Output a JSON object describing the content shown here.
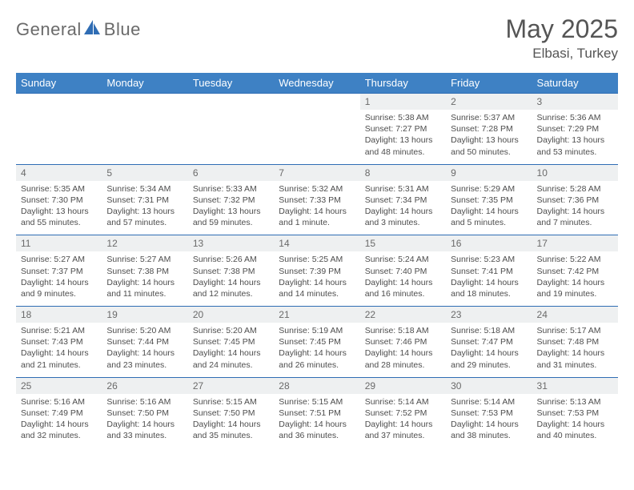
{
  "brand": {
    "part1": "General",
    "part2": "Blue"
  },
  "title": "May 2025",
  "location": "Elbasi, Turkey",
  "colors": {
    "header_bg": "#3e81c4",
    "header_text": "#ffffff",
    "daynum_bg": "#eef0f1",
    "daynum_text": "#6a6a6a",
    "row_divider": "#2f6db4",
    "body_text": "#4d4d4d",
    "title_text": "#555555",
    "logo_gray": "#6a6a6a",
    "logo_blue": "#2f6db4"
  },
  "typography": {
    "title_fontsize": 32,
    "location_fontsize": 17,
    "dayhead_fontsize": 13,
    "daynum_fontsize": 12,
    "cell_fontsize": 10.5
  },
  "day_names": [
    "Sunday",
    "Monday",
    "Tuesday",
    "Wednesday",
    "Thursday",
    "Friday",
    "Saturday"
  ],
  "weeks": [
    {
      "numbers": [
        "",
        "",
        "",
        "",
        "1",
        "2",
        "3"
      ],
      "cells": [
        null,
        null,
        null,
        null,
        {
          "sunrise": "Sunrise: 5:38 AM",
          "sunset": "Sunset: 7:27 PM",
          "d1": "Daylight: 13 hours",
          "d2": "and 48 minutes."
        },
        {
          "sunrise": "Sunrise: 5:37 AM",
          "sunset": "Sunset: 7:28 PM",
          "d1": "Daylight: 13 hours",
          "d2": "and 50 minutes."
        },
        {
          "sunrise": "Sunrise: 5:36 AM",
          "sunset": "Sunset: 7:29 PM",
          "d1": "Daylight: 13 hours",
          "d2": "and 53 minutes."
        }
      ]
    },
    {
      "numbers": [
        "4",
        "5",
        "6",
        "7",
        "8",
        "9",
        "10"
      ],
      "cells": [
        {
          "sunrise": "Sunrise: 5:35 AM",
          "sunset": "Sunset: 7:30 PM",
          "d1": "Daylight: 13 hours",
          "d2": "and 55 minutes."
        },
        {
          "sunrise": "Sunrise: 5:34 AM",
          "sunset": "Sunset: 7:31 PM",
          "d1": "Daylight: 13 hours",
          "d2": "and 57 minutes."
        },
        {
          "sunrise": "Sunrise: 5:33 AM",
          "sunset": "Sunset: 7:32 PM",
          "d1": "Daylight: 13 hours",
          "d2": "and 59 minutes."
        },
        {
          "sunrise": "Sunrise: 5:32 AM",
          "sunset": "Sunset: 7:33 PM",
          "d1": "Daylight: 14 hours",
          "d2": "and 1 minute."
        },
        {
          "sunrise": "Sunrise: 5:31 AM",
          "sunset": "Sunset: 7:34 PM",
          "d1": "Daylight: 14 hours",
          "d2": "and 3 minutes."
        },
        {
          "sunrise": "Sunrise: 5:29 AM",
          "sunset": "Sunset: 7:35 PM",
          "d1": "Daylight: 14 hours",
          "d2": "and 5 minutes."
        },
        {
          "sunrise": "Sunrise: 5:28 AM",
          "sunset": "Sunset: 7:36 PM",
          "d1": "Daylight: 14 hours",
          "d2": "and 7 minutes."
        }
      ]
    },
    {
      "numbers": [
        "11",
        "12",
        "13",
        "14",
        "15",
        "16",
        "17"
      ],
      "cells": [
        {
          "sunrise": "Sunrise: 5:27 AM",
          "sunset": "Sunset: 7:37 PM",
          "d1": "Daylight: 14 hours",
          "d2": "and 9 minutes."
        },
        {
          "sunrise": "Sunrise: 5:27 AM",
          "sunset": "Sunset: 7:38 PM",
          "d1": "Daylight: 14 hours",
          "d2": "and 11 minutes."
        },
        {
          "sunrise": "Sunrise: 5:26 AM",
          "sunset": "Sunset: 7:38 PM",
          "d1": "Daylight: 14 hours",
          "d2": "and 12 minutes."
        },
        {
          "sunrise": "Sunrise: 5:25 AM",
          "sunset": "Sunset: 7:39 PM",
          "d1": "Daylight: 14 hours",
          "d2": "and 14 minutes."
        },
        {
          "sunrise": "Sunrise: 5:24 AM",
          "sunset": "Sunset: 7:40 PM",
          "d1": "Daylight: 14 hours",
          "d2": "and 16 minutes."
        },
        {
          "sunrise": "Sunrise: 5:23 AM",
          "sunset": "Sunset: 7:41 PM",
          "d1": "Daylight: 14 hours",
          "d2": "and 18 minutes."
        },
        {
          "sunrise": "Sunrise: 5:22 AM",
          "sunset": "Sunset: 7:42 PM",
          "d1": "Daylight: 14 hours",
          "d2": "and 19 minutes."
        }
      ]
    },
    {
      "numbers": [
        "18",
        "19",
        "20",
        "21",
        "22",
        "23",
        "24"
      ],
      "cells": [
        {
          "sunrise": "Sunrise: 5:21 AM",
          "sunset": "Sunset: 7:43 PM",
          "d1": "Daylight: 14 hours",
          "d2": "and 21 minutes."
        },
        {
          "sunrise": "Sunrise: 5:20 AM",
          "sunset": "Sunset: 7:44 PM",
          "d1": "Daylight: 14 hours",
          "d2": "and 23 minutes."
        },
        {
          "sunrise": "Sunrise: 5:20 AM",
          "sunset": "Sunset: 7:45 PM",
          "d1": "Daylight: 14 hours",
          "d2": "and 24 minutes."
        },
        {
          "sunrise": "Sunrise: 5:19 AM",
          "sunset": "Sunset: 7:45 PM",
          "d1": "Daylight: 14 hours",
          "d2": "and 26 minutes."
        },
        {
          "sunrise": "Sunrise: 5:18 AM",
          "sunset": "Sunset: 7:46 PM",
          "d1": "Daylight: 14 hours",
          "d2": "and 28 minutes."
        },
        {
          "sunrise": "Sunrise: 5:18 AM",
          "sunset": "Sunset: 7:47 PM",
          "d1": "Daylight: 14 hours",
          "d2": "and 29 minutes."
        },
        {
          "sunrise": "Sunrise: 5:17 AM",
          "sunset": "Sunset: 7:48 PM",
          "d1": "Daylight: 14 hours",
          "d2": "and 31 minutes."
        }
      ]
    },
    {
      "numbers": [
        "25",
        "26",
        "27",
        "28",
        "29",
        "30",
        "31"
      ],
      "cells": [
        {
          "sunrise": "Sunrise: 5:16 AM",
          "sunset": "Sunset: 7:49 PM",
          "d1": "Daylight: 14 hours",
          "d2": "and 32 minutes."
        },
        {
          "sunrise": "Sunrise: 5:16 AM",
          "sunset": "Sunset: 7:50 PM",
          "d1": "Daylight: 14 hours",
          "d2": "and 33 minutes."
        },
        {
          "sunrise": "Sunrise: 5:15 AM",
          "sunset": "Sunset: 7:50 PM",
          "d1": "Daylight: 14 hours",
          "d2": "and 35 minutes."
        },
        {
          "sunrise": "Sunrise: 5:15 AM",
          "sunset": "Sunset: 7:51 PM",
          "d1": "Daylight: 14 hours",
          "d2": "and 36 minutes."
        },
        {
          "sunrise": "Sunrise: 5:14 AM",
          "sunset": "Sunset: 7:52 PM",
          "d1": "Daylight: 14 hours",
          "d2": "and 37 minutes."
        },
        {
          "sunrise": "Sunrise: 5:14 AM",
          "sunset": "Sunset: 7:53 PM",
          "d1": "Daylight: 14 hours",
          "d2": "and 38 minutes."
        },
        {
          "sunrise": "Sunrise: 5:13 AM",
          "sunset": "Sunset: 7:53 PM",
          "d1": "Daylight: 14 hours",
          "d2": "and 40 minutes."
        }
      ]
    }
  ]
}
